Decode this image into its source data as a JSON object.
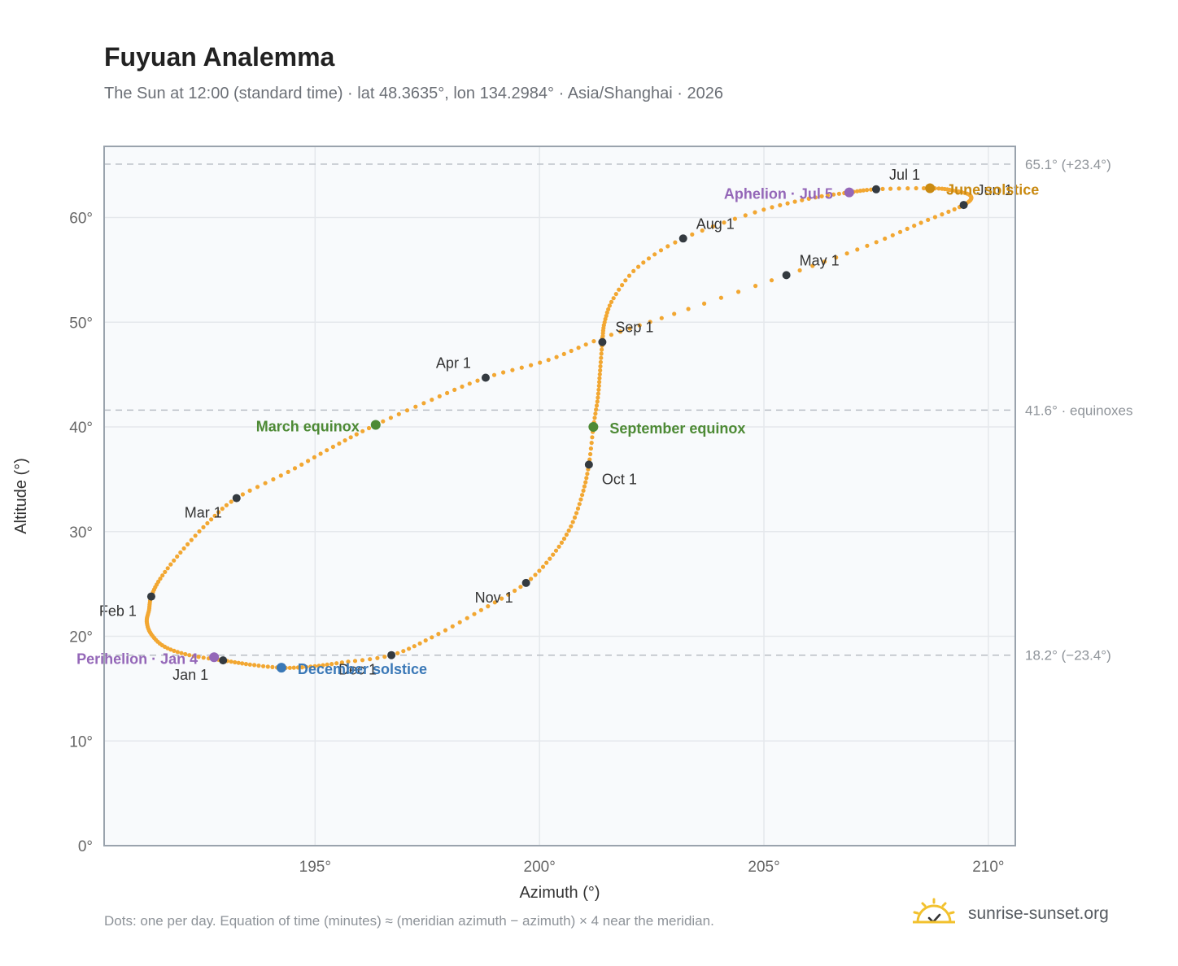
{
  "title": "Fuyuan Analemma",
  "subtitle": "The Sun at 12:00 (standard time) · lat 48.3635°, lon 134.2984° · Asia/Shanghai · 2026",
  "footnote": "Dots: one per day. Equation of time (minutes) ≈ (meridian azimuth − azimuth) × 4 near the meridian.",
  "brand": {
    "name": "sunrise-sunset.org",
    "icon": "sun-logo-icon"
  },
  "colors": {
    "curve": "#f2a732",
    "month_marker": "#343a40",
    "equinox": "#4d8a35",
    "solstice_june": "#c98a12",
    "solstice_december": "#3a78b7",
    "apsis": "#9467b8",
    "reference_line": "#b9bec5",
    "grid": "#e5e8ec",
    "plot_bg": "#f8fafc",
    "axis": "#9aa3ad"
  },
  "chart_data": {
    "type": "scatter",
    "xlabel": "Azimuth (°)",
    "ylabel": "Altitude (°)",
    "xlim": [
      190.3,
      210.6
    ],
    "ylim": [
      0,
      66.8
    ],
    "xticks": [
      195,
      200,
      205,
      210
    ],
    "yticks": [
      0,
      10,
      20,
      30,
      40,
      50,
      60
    ],
    "x_tick_labels": [
      "195°",
      "200°",
      "205°",
      "210°"
    ],
    "y_tick_labels": [
      "0°",
      "10°",
      "20°",
      "30°",
      "40°",
      "50°",
      "60°"
    ],
    "grid": true,
    "reference_lines": [
      {
        "y": 65.1,
        "label": "65.1° (+23.4°)"
      },
      {
        "y": 41.6,
        "label": "41.6° · equinoxes"
      },
      {
        "y": 18.2,
        "label": "18.2° (−23.4°)"
      }
    ],
    "daily_path": [
      {
        "date": "Jan 1",
        "az": 192.95,
        "alt": 17.7
      },
      {
        "date": "Jan 5",
        "az": 192.2,
        "alt": 18.2
      },
      {
        "date": "Jan 10",
        "az": 191.65,
        "alt": 19.0
      },
      {
        "date": "Jan 15",
        "az": 191.35,
        "alt": 20.2
      },
      {
        "date": "Jan 20",
        "az": 191.25,
        "alt": 21.4
      },
      {
        "date": "Jan 25",
        "az": 191.3,
        "alt": 22.5
      },
      {
        "date": "Feb 1",
        "az": 191.35,
        "alt": 23.8
      },
      {
        "date": "Feb 7",
        "az": 191.55,
        "alt": 25.5
      },
      {
        "date": "Feb 14",
        "az": 192.0,
        "alt": 28.0
      },
      {
        "date": "Feb 21",
        "az": 192.6,
        "alt": 30.8
      },
      {
        "date": "Mar 1",
        "az": 193.25,
        "alt": 33.2
      },
      {
        "date": "Mar 8",
        "az": 194.4,
        "alt": 35.7
      },
      {
        "date": "Mar 15",
        "az": 195.4,
        "alt": 38.1
      },
      {
        "date": "Mar 20",
        "az": 196.35,
        "alt": 40.2
      },
      {
        "date": "Mar 26",
        "az": 197.6,
        "alt": 42.6
      },
      {
        "date": "Apr 1",
        "az": 198.8,
        "alt": 44.7
      },
      {
        "date": "Apr 8",
        "az": 200.2,
        "alt": 46.4
      },
      {
        "date": "Apr 15",
        "az": 201.4,
        "alt": 48.5
      },
      {
        "date": "Apr 22",
        "az": 203.0,
        "alt": 50.8
      },
      {
        "date": "May 1",
        "az": 205.5,
        "alt": 54.5
      },
      {
        "date": "May 11",
        "az": 207.3,
        "alt": 57.3
      },
      {
        "date": "May 21",
        "az": 208.5,
        "alt": 59.5
      },
      {
        "date": "Jun 1",
        "az": 209.45,
        "alt": 61.2
      },
      {
        "date": "Jun 8",
        "az": 209.6,
        "alt": 62.1
      },
      {
        "date": "Jun 14",
        "az": 209.2,
        "alt": 62.6
      },
      {
        "date": "Jun 21",
        "az": 208.7,
        "alt": 62.8
      },
      {
        "date": "Jul 1",
        "az": 207.5,
        "alt": 62.7
      },
      {
        "date": "Jul 5",
        "az": 206.9,
        "alt": 62.4
      },
      {
        "date": "Jul 12",
        "az": 206.0,
        "alt": 61.8
      },
      {
        "date": "Jul 20",
        "az": 204.8,
        "alt": 60.5
      },
      {
        "date": "Aug 1",
        "az": 203.2,
        "alt": 58.0
      },
      {
        "date": "Aug 10",
        "az": 202.2,
        "alt": 55.3
      },
      {
        "date": "Aug 18",
        "az": 201.65,
        "alt": 52.3
      },
      {
        "date": "Aug 25",
        "az": 201.45,
        "alt": 50.0
      },
      {
        "date": "Sep 1",
        "az": 201.4,
        "alt": 48.1
      },
      {
        "date": "Sep 8",
        "az": 201.35,
        "alt": 45.4
      },
      {
        "date": "Sep 15",
        "az": 201.3,
        "alt": 42.8
      },
      {
        "date": "Sep 23",
        "az": 201.2,
        "alt": 40.0
      },
      {
        "date": "Oct 1",
        "az": 201.1,
        "alt": 36.4
      },
      {
        "date": "Oct 8",
        "az": 200.95,
        "alt": 33.5
      },
      {
        "date": "Oct 15",
        "az": 200.7,
        "alt": 30.5
      },
      {
        "date": "Oct 23",
        "az": 200.3,
        "alt": 27.8
      },
      {
        "date": "Nov 1",
        "az": 199.7,
        "alt": 25.1
      },
      {
        "date": "Nov 10",
        "az": 198.7,
        "alt": 22.5
      },
      {
        "date": "Nov 20",
        "az": 197.6,
        "alt": 19.9
      },
      {
        "date": "Dec 1",
        "az": 196.7,
        "alt": 18.2
      },
      {
        "date": "Dec 10",
        "az": 195.6,
        "alt": 17.5
      },
      {
        "date": "Dec 16",
        "az": 194.9,
        "alt": 17.1
      },
      {
        "date": "Dec 21",
        "az": 194.25,
        "alt": 17.0
      },
      {
        "date": "Dec 27",
        "az": 193.55,
        "alt": 17.3
      },
      {
        "date": "Jan 1",
        "az": 192.95,
        "alt": 17.7
      }
    ],
    "month_markers": [
      {
        "label": "Jan 1",
        "az": 192.95,
        "alt": 17.7,
        "anchor": "end",
        "dx": -18,
        "dy": 24
      },
      {
        "label": "Feb 1",
        "az": 191.35,
        "alt": 23.8,
        "anchor": "end",
        "dx": -18,
        "dy": 24
      },
      {
        "label": "Mar 1",
        "az": 193.25,
        "alt": 33.2,
        "anchor": "end",
        "dx": -18,
        "dy": 24
      },
      {
        "label": "Apr 1",
        "az": 198.8,
        "alt": 44.7,
        "anchor": "end",
        "dx": -18,
        "dy": -12
      },
      {
        "label": "May 1",
        "az": 205.5,
        "alt": 54.5,
        "anchor": "start",
        "dx": 16,
        "dy": -12
      },
      {
        "label": "Jun 1",
        "az": 209.45,
        "alt": 61.2,
        "anchor": "start",
        "dx": 16,
        "dy": -12
      },
      {
        "label": "Jul 1",
        "az": 207.5,
        "alt": 62.7,
        "anchor": "start",
        "dx": 16,
        "dy": -12
      },
      {
        "label": "Aug 1",
        "az": 203.2,
        "alt": 58.0,
        "anchor": "start",
        "dx": 16,
        "dy": -12
      },
      {
        "label": "Sep 1",
        "az": 201.4,
        "alt": 48.1,
        "anchor": "start",
        "dx": 16,
        "dy": -12
      },
      {
        "label": "Oct 1",
        "az": 201.1,
        "alt": 36.4,
        "anchor": "start",
        "dx": 16,
        "dy": 24
      },
      {
        "label": "Nov 1",
        "az": 199.7,
        "alt": 25.1,
        "anchor": "end",
        "dx": -16,
        "dy": 24
      },
      {
        "label": "Dec 1",
        "az": 196.7,
        "alt": 18.2,
        "anchor": "end",
        "dx": -18,
        "dy": 24
      }
    ],
    "key_points": [
      {
        "label": "March equinox",
        "az": 196.35,
        "alt": 40.2,
        "color": "#4d8a35",
        "anchor": "end",
        "dx": -20,
        "dy": 8
      },
      {
        "label": "September equinox",
        "az": 201.2,
        "alt": 40.0,
        "color": "#4d8a35",
        "anchor": "start",
        "dx": 20,
        "dy": 8
      },
      {
        "label": "June solstice",
        "az": 208.7,
        "alt": 62.8,
        "color": "#c98a12",
        "anchor": "start",
        "dx": 20,
        "dy": 8
      },
      {
        "label": "December solstice",
        "az": 194.25,
        "alt": 17.0,
        "color": "#3a78b7",
        "anchor": "start",
        "dx": 20,
        "dy": 8
      },
      {
        "label": "Perihelion · Jan 4",
        "az": 192.75,
        "alt": 18.0,
        "color": "#9467b8",
        "anchor": "end",
        "dx": -20,
        "dy": 8
      },
      {
        "label": "Aphelion · Jul 5",
        "az": 206.9,
        "alt": 62.4,
        "color": "#9467b8",
        "anchor": "end",
        "dx": -20,
        "dy": 8
      }
    ]
  }
}
